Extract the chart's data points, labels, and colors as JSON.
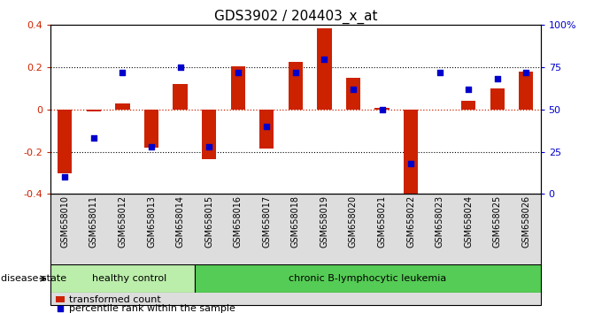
{
  "title": "GDS3902 / 204403_x_at",
  "samples": [
    "GSM658010",
    "GSM658011",
    "GSM658012",
    "GSM658013",
    "GSM658014",
    "GSM658015",
    "GSM658016",
    "GSM658017",
    "GSM658018",
    "GSM658019",
    "GSM658020",
    "GSM658021",
    "GSM658022",
    "GSM658023",
    "GSM658024",
    "GSM658025",
    "GSM658026"
  ],
  "red_bars": [
    -0.3,
    -0.01,
    0.03,
    -0.18,
    0.12,
    -0.235,
    0.205,
    -0.185,
    0.225,
    0.385,
    0.15,
    0.01,
    -0.42,
    0.0,
    0.04,
    0.1,
    0.18
  ],
  "blue_dots": [
    10,
    33,
    72,
    28,
    75,
    28,
    72,
    40,
    72,
    80,
    62,
    50,
    18,
    72,
    62,
    68,
    72
  ],
  "ylim_left": [
    -0.4,
    0.4
  ],
  "ylim_right": [
    0,
    100
  ],
  "healthy_count": 5,
  "disease_label_healthy": "healthy control",
  "disease_label_chronic": "chronic B-lymphocytic leukemia",
  "disease_state_label": "disease state",
  "legend_red": "transformed count",
  "legend_blue": "percentile rank within the sample",
  "bar_color": "#cc2200",
  "dot_color": "#0000cc",
  "healthy_bg": "#bbeeaa",
  "chronic_bg": "#55cc55",
  "bar_width": 0.5,
  "yticks_left": [
    -0.4,
    -0.2,
    0.0,
    0.2,
    0.4
  ],
  "yticks_right": [
    0,
    25,
    50,
    75,
    100
  ],
  "title_fontsize": 11,
  "tick_fontsize": 7,
  "axis_label_color_left": "#cc2200",
  "axis_label_color_right": "#0000cc"
}
